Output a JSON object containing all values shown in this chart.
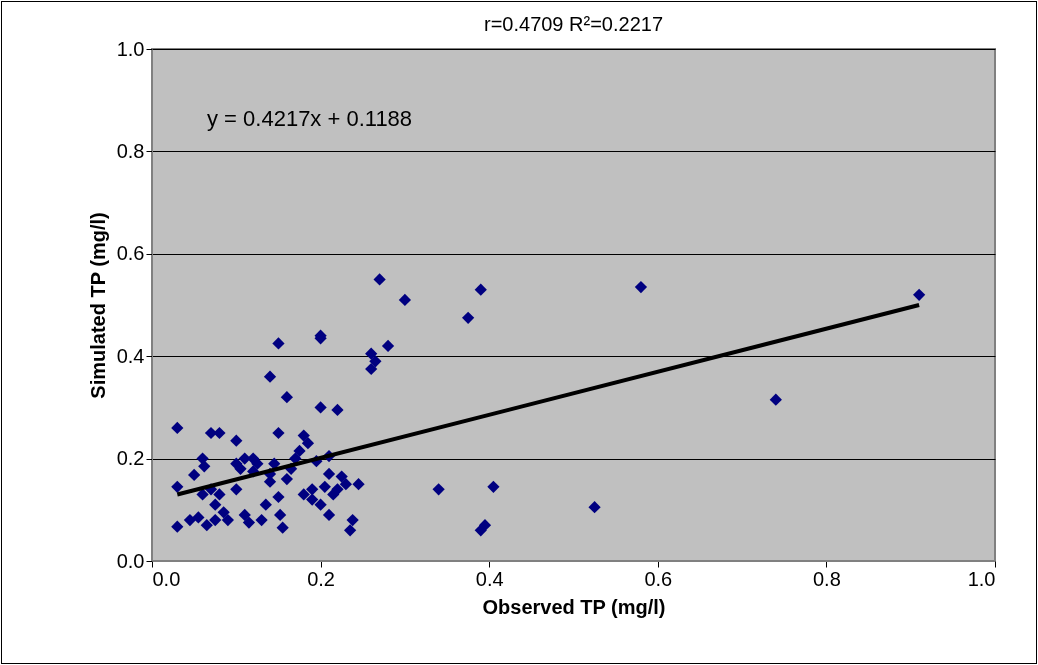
{
  "chart_data": {
    "type": "scatter",
    "title": "r=0.4709 R²=0.2217",
    "xlabel": "Observed TP (mg/l)",
    "ylabel": "Simulated TP (mg/l)",
    "annotations": [
      "y = 0.4217x + 0.1188"
    ],
    "xlim": [
      0,
      1
    ],
    "ylim": [
      0,
      1
    ],
    "xticks": [
      {
        "value": 0,
        "label": "0.0"
      },
      {
        "value": 0.2,
        "label": "0.2"
      },
      {
        "value": 0.4,
        "label": "0.4"
      },
      {
        "value": 0.6,
        "label": "0.6"
      },
      {
        "value": 0.8,
        "label": "0.8"
      },
      {
        "value": 1,
        "label": "1.0"
      }
    ],
    "yticks": [
      {
        "value": 0,
        "label": "0.0"
      },
      {
        "value": 0.2,
        "label": "0.2"
      },
      {
        "value": 0.4,
        "label": "0.4"
      },
      {
        "value": 0.6,
        "label": "0.6"
      },
      {
        "value": 0.8,
        "label": "0.8"
      },
      {
        "value": 1,
        "label": "1.0"
      }
    ],
    "grid": "y",
    "marker": "diamond",
    "series": [
      {
        "color": "#000080",
        "x": [
          0.03,
          0.03,
          0.03,
          0.045,
          0.05,
          0.055,
          0.06,
          0.062,
          0.06,
          0.065,
          0.07,
          0.07,
          0.075,
          0.075,
          0.08,
          0.08,
          0.085,
          0.09,
          0.1,
          0.1,
          0.1,
          0.105,
          0.11,
          0.11,
          0.115,
          0.12,
          0.12,
          0.125,
          0.13,
          0.135,
          0.14,
          0.14,
          0.14,
          0.145,
          0.15,
          0.15,
          0.15,
          0.152,
          0.155,
          0.16,
          0.16,
          0.165,
          0.17,
          0.175,
          0.18,
          0.18,
          0.185,
          0.19,
          0.19,
          0.195,
          0.2,
          0.2,
          0.2,
          0.2,
          0.205,
          0.21,
          0.21,
          0.21,
          0.215,
          0.22,
          0.22,
          0.225,
          0.23,
          0.235,
          0.238,
          0.245,
          0.26,
          0.26,
          0.265,
          0.27,
          0.28,
          0.3,
          0.34,
          0.375,
          0.39,
          0.39,
          0.395,
          0.405,
          0.525,
          0.58,
          0.74,
          0.91
        ],
        "values": [
          0.26,
          0.145,
          0.067,
          0.08,
          0.168,
          0.085,
          0.2,
          0.185,
          0.13,
          0.07,
          0.25,
          0.14,
          0.11,
          0.08,
          0.25,
          0.13,
          0.095,
          0.08,
          0.235,
          0.19,
          0.14,
          0.18,
          0.2,
          0.09,
          0.075,
          0.2,
          0.175,
          0.19,
          0.08,
          0.11,
          0.155,
          0.17,
          0.36,
          0.19,
          0.425,
          0.25,
          0.125,
          0.09,
          0.065,
          0.32,
          0.16,
          0.18,
          0.2,
          0.215,
          0.245,
          0.13,
          0.23,
          0.14,
          0.12,
          0.195,
          0.3,
          0.44,
          0.435,
          0.11,
          0.145,
          0.205,
          0.17,
          0.09,
          0.13,
          0.295,
          0.14,
          0.165,
          0.15,
          0.06,
          0.08,
          0.15,
          0.405,
          0.375,
          0.39,
          0.55,
          0.42,
          0.51,
          0.14,
          0.475,
          0.53,
          0.06,
          0.07,
          0.145,
          0.105,
          0.535,
          0.315,
          0.52
        ]
      },
      {
        "type": "line",
        "color": "#000000",
        "marker": "none",
        "line_style": "solid",
        "x": [
          0.03,
          0.91
        ],
        "values": [
          0.13,
          0.5
        ]
      }
    ]
  }
}
